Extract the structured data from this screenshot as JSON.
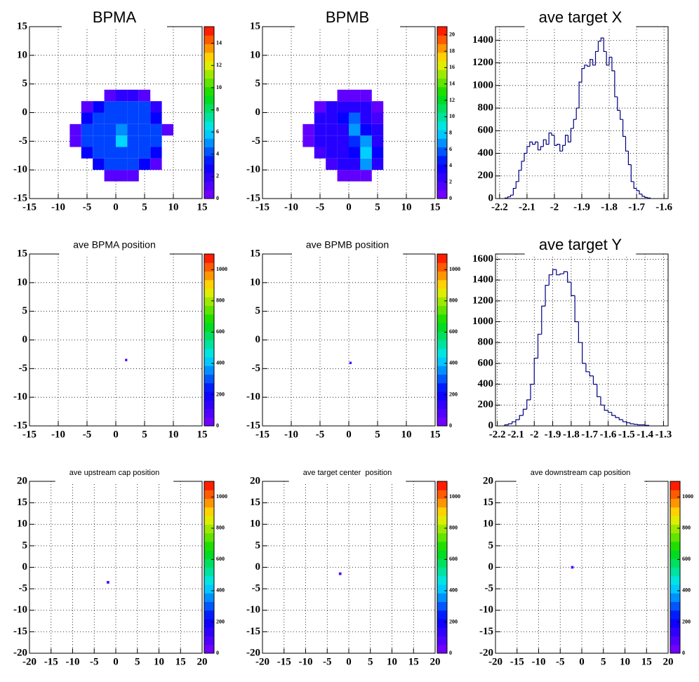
{
  "chart_data": [
    {
      "type": "heatmap",
      "title": "BPMA",
      "title_size": "large",
      "xlim": [
        -15,
        15
      ],
      "ylim": [
        -15,
        15
      ],
      "xticks": [
        -15,
        -10,
        -5,
        0,
        5,
        10,
        15
      ],
      "yticks": [
        -15,
        -10,
        -5,
        0,
        5,
        10,
        15
      ],
      "grid": true,
      "xbins": [
        -8,
        -6,
        -4,
        -2,
        0,
        2,
        4,
        6,
        8,
        10
      ],
      "ybins": [
        -12,
        -10,
        -8,
        -6,
        -4,
        -2,
        0,
        2,
        4
      ],
      "z": [
        [
          0,
          0,
          0,
          1,
          1,
          1,
          0,
          0,
          0
        ],
        [
          0,
          0,
          3,
          4,
          4,
          4,
          3,
          1,
          0
        ],
        [
          0,
          3,
          4,
          4,
          4,
          4,
          4,
          3,
          0
        ],
        [
          1,
          4,
          4,
          4,
          6,
          4,
          4,
          4,
          0
        ],
        [
          1,
          4,
          4,
          4,
          5,
          4,
          4,
          4,
          1
        ],
        [
          0,
          3,
          4,
          4,
          4,
          4,
          4,
          3,
          0
        ],
        [
          0,
          1,
          3,
          4,
          4,
          4,
          4,
          2,
          0
        ],
        [
          0,
          0,
          0,
          1,
          2,
          2,
          1,
          0,
          0
        ]
      ],
      "zlim": [
        0,
        15.5
      ],
      "zticks": [
        0,
        2,
        4,
        6,
        8,
        10,
        12,
        14
      ]
    },
    {
      "type": "heatmap",
      "title": "BPMB",
      "title_size": "large",
      "xlim": [
        -15,
        15
      ],
      "ylim": [
        -15,
        15
      ],
      "xticks": [
        -15,
        -10,
        -5,
        0,
        5,
        10,
        15
      ],
      "yticks": [
        -15,
        -10,
        -5,
        0,
        5,
        10,
        15
      ],
      "grid": true,
      "xbins": [
        -8,
        -6,
        -4,
        -2,
        0,
        2,
        4,
        6,
        8
      ],
      "ybins": [
        -12,
        -10,
        -8,
        -6,
        -4,
        -2,
        0,
        2,
        4
      ],
      "z": [
        [
          0,
          0,
          0,
          1,
          1,
          1,
          0,
          0
        ],
        [
          0,
          0,
          2,
          3,
          3,
          7,
          3,
          0
        ],
        [
          0,
          2,
          3,
          3,
          4,
          8,
          4,
          0
        ],
        [
          1,
          3,
          3,
          3,
          5,
          7,
          3,
          0
        ],
        [
          1,
          3,
          3,
          3,
          7,
          4,
          3,
          0
        ],
        [
          0,
          3,
          3,
          4,
          6,
          3,
          2,
          0
        ],
        [
          0,
          1,
          3,
          3,
          3,
          3,
          1,
          0
        ],
        [
          0,
          0,
          0,
          1,
          1,
          1,
          0,
          0
        ]
      ],
      "zlim": [
        0,
        21
      ],
      "zticks": [
        0,
        2,
        4,
        6,
        8,
        10,
        12,
        14,
        16,
        18,
        20
      ]
    },
    {
      "type": "histogram",
      "title": "ave target X",
      "title_size": "large",
      "color": "#000080",
      "xlim": [
        -2.215,
        -1.585
      ],
      "ylim": [
        0,
        1520
      ],
      "xticks": [
        -2.2,
        -2.1,
        -2,
        -1.9,
        -1.8,
        -1.7,
        -1.6
      ],
      "yticks": [
        0,
        200,
        400,
        600,
        800,
        1000,
        1200,
        1400
      ],
      "grid": true,
      "bins": [
        -2.18,
        -2.17,
        -2.16,
        -2.15,
        -2.14,
        -2.13,
        -2.12,
        -2.11,
        -2.1,
        -2.09,
        -2.08,
        -2.07,
        -2.06,
        -2.05,
        -2.04,
        -2.03,
        -2.02,
        -2.01,
        -2,
        -1.99,
        -1.98,
        -1.97,
        -1.96,
        -1.95,
        -1.94,
        -1.93,
        -1.92,
        -1.91,
        -1.9,
        -1.89,
        -1.88,
        -1.87,
        -1.86,
        -1.85,
        -1.84,
        -1.83,
        -1.82,
        -1.81,
        -1.8,
        -1.79,
        -1.78,
        -1.77,
        -1.76,
        -1.75,
        -1.74,
        -1.73,
        -1.72,
        -1.71,
        -1.7,
        -1.69,
        -1.68,
        -1.67,
        -1.66,
        -1.65
      ],
      "values": [
        5,
        15,
        30,
        90,
        150,
        250,
        330,
        400,
        460,
        500,
        480,
        500,
        430,
        460,
        520,
        480,
        580,
        560,
        470,
        480,
        420,
        470,
        560,
        500,
        620,
        700,
        800,
        1030,
        1150,
        1180,
        1170,
        1230,
        1180,
        1300,
        1390,
        1420,
        1300,
        1180,
        1250,
        1130,
        900,
        780,
        700,
        550,
        420,
        300,
        150,
        90,
        70,
        40,
        20,
        10,
        5
      ]
    },
    {
      "type": "heatmap",
      "title": "ave BPMA position",
      "title_size": "medium",
      "xlim": [
        -15,
        15
      ],
      "ylim": [
        -15,
        15
      ],
      "xticks": [
        -15,
        -10,
        -5,
        0,
        5,
        10,
        15
      ],
      "yticks": [
        -15,
        -10,
        -5,
        0,
        5,
        10,
        15
      ],
      "grid": true,
      "xbins": [
        1.6,
        2
      ],
      "ybins": [
        -3.7,
        -3.3
      ],
      "z": [
        [
          100
        ]
      ],
      "zlim": [
        0,
        1100
      ],
      "zticks": [
        0,
        200,
        400,
        600,
        800,
        1000
      ]
    },
    {
      "type": "heatmap",
      "title": "ave BPMB position",
      "title_size": "medium",
      "xlim": [
        -15,
        15
      ],
      "ylim": [
        -15,
        15
      ],
      "xticks": [
        -15,
        -10,
        -5,
        0,
        5,
        10,
        15
      ],
      "yticks": [
        -15,
        -10,
        -5,
        0,
        5,
        10,
        15
      ],
      "grid": true,
      "xbins": [
        0.1,
        0.5
      ],
      "ybins": [
        -4.2,
        -3.8
      ],
      "z": [
        [
          100
        ]
      ],
      "zlim": [
        0,
        1100
      ],
      "zticks": [
        0,
        200,
        400,
        600,
        800,
        1000
      ]
    },
    {
      "type": "histogram",
      "title": "ave target Y",
      "title_size": "large",
      "color": "#000080",
      "xlim": [
        -2.21,
        -1.275
      ],
      "ylim": [
        0,
        1650
      ],
      "xticks": [
        -2.2,
        -2.1,
        -2,
        -1.9,
        -1.8,
        -1.7,
        -1.6,
        -1.5,
        -1.4,
        -1.3
      ],
      "yticks": [
        0,
        200,
        400,
        600,
        800,
        1000,
        1200,
        1400,
        1600
      ],
      "grid": true,
      "bins": [
        -2.16,
        -2.14,
        -2.12,
        -2.1,
        -2.08,
        -2.06,
        -2.04,
        -2.02,
        -2,
        -1.98,
        -1.96,
        -1.94,
        -1.92,
        -1.9,
        -1.88,
        -1.86,
        -1.84,
        -1.82,
        -1.8,
        -1.78,
        -1.76,
        -1.74,
        -1.72,
        -1.7,
        -1.68,
        -1.66,
        -1.64,
        -1.62,
        -1.6,
        -1.58,
        -1.56,
        -1.54,
        -1.52,
        -1.5,
        -1.48,
        -1.46,
        -1.44,
        -1.42,
        -1.4,
        -1.38
      ],
      "values": [
        10,
        20,
        40,
        60,
        100,
        160,
        250,
        400,
        650,
        880,
        1150,
        1350,
        1450,
        1500,
        1450,
        1460,
        1480,
        1380,
        1250,
        1000,
        800,
        600,
        520,
        480,
        400,
        280,
        200,
        150,
        130,
        100,
        80,
        60,
        40,
        30,
        20,
        15,
        10,
        10,
        5
      ]
    },
    {
      "type": "heatmap",
      "title": "ave upstream cap position",
      "title_size": "small",
      "xlim": [
        -20,
        20
      ],
      "ylim": [
        -20,
        20
      ],
      "xticks": [
        -20,
        -15,
        -10,
        -5,
        0,
        5,
        10,
        15,
        20
      ],
      "yticks": [
        -20,
        -15,
        -10,
        -5,
        0,
        5,
        10,
        15,
        20
      ],
      "grid": true,
      "xbins": [
        -2.1,
        -1.5
      ],
      "ybins": [
        -3.8,
        -3.2
      ],
      "z": [
        [
          100
        ]
      ],
      "zlim": [
        0,
        1100
      ],
      "zticks": [
        0,
        200,
        400,
        600,
        800,
        1000
      ]
    },
    {
      "type": "heatmap",
      "title": "ave target center  position",
      "title_size": "small",
      "xlim": [
        -20,
        20
      ],
      "ylim": [
        -20,
        20
      ],
      "xticks": [
        -20,
        -15,
        -10,
        -5,
        0,
        5,
        10,
        15,
        20
      ],
      "yticks": [
        -20,
        -15,
        -10,
        -5,
        0,
        5,
        10,
        15,
        20
      ],
      "grid": true,
      "xbins": [
        -2.3,
        -1.7
      ],
      "ybins": [
        -1.8,
        -1.2
      ],
      "z": [
        [
          100
        ]
      ],
      "zlim": [
        0,
        1100
      ],
      "zticks": [
        0,
        200,
        400,
        600,
        800,
        1000
      ]
    },
    {
      "type": "heatmap",
      "title": "ave downstream cap position",
      "title_size": "small",
      "xlim": [
        -20,
        20
      ],
      "ylim": [
        -20,
        20
      ],
      "xticks": [
        -20,
        -15,
        -10,
        -5,
        0,
        5,
        10,
        15,
        20
      ],
      "yticks": [
        -20,
        -15,
        -10,
        -5,
        0,
        5,
        10,
        15,
        20
      ],
      "grid": true,
      "xbins": [
        -2.5,
        -1.9
      ],
      "ybins": [
        -0.3,
        0.3
      ],
      "z": [
        [
          100
        ]
      ],
      "zlim": [
        0,
        1100
      ],
      "zticks": [
        0,
        200,
        400,
        600,
        800,
        1000
      ]
    }
  ]
}
